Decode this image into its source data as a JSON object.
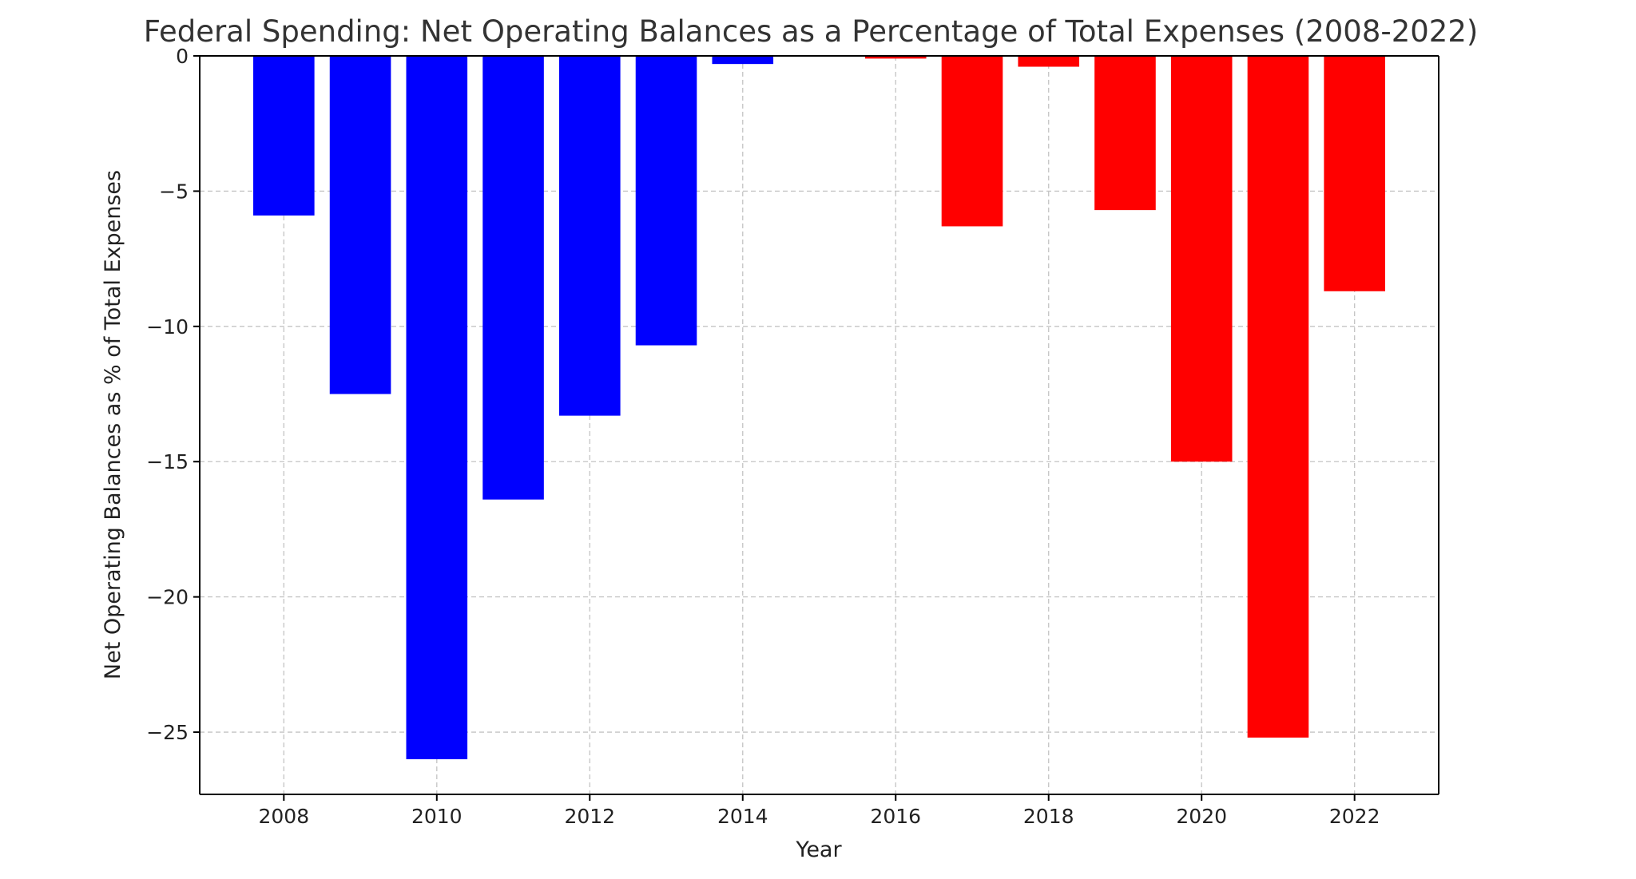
{
  "chart_data": {
    "type": "bar",
    "title": "Federal Spending: Net Operating Balances as a Percentage of Total Expenses (2008-2022)",
    "xlabel": "Year",
    "ylabel": "Net Operating Balances as % of Total Expenses",
    "x": [
      2008,
      2009,
      2010,
      2011,
      2012,
      2013,
      2014,
      2015,
      2016,
      2017,
      2018,
      2019,
      2020,
      2021,
      2022
    ],
    "values": [
      -5.9,
      -12.5,
      -26.0,
      -16.4,
      -13.3,
      -10.7,
      -0.3,
      0.0,
      -0.1,
      -6.3,
      -0.4,
      -5.7,
      -15.0,
      -25.2,
      -8.7
    ],
    "colors": [
      "#0000ff",
      "#0000ff",
      "#0000ff",
      "#0000ff",
      "#0000ff",
      "#0000ff",
      "#0000ff",
      "#0000ff",
      "#ff0000",
      "#ff0000",
      "#ff0000",
      "#ff0000",
      "#ff0000",
      "#ff0000",
      "#ff0000"
    ],
    "xlim": [
      2006.9,
      2023.1
    ],
    "ylim": [
      -27.3,
      0
    ],
    "xticks": [
      2008,
      2010,
      2012,
      2014,
      2016,
      2018,
      2020,
      2022
    ],
    "yticks": [
      0,
      -5,
      -10,
      -15,
      -20,
      -25
    ],
    "ytick_labels": [
      "0",
      "−5",
      "−10",
      "−15",
      "−20",
      "−25"
    ],
    "grid": true,
    "bar_width": 0.8
  }
}
